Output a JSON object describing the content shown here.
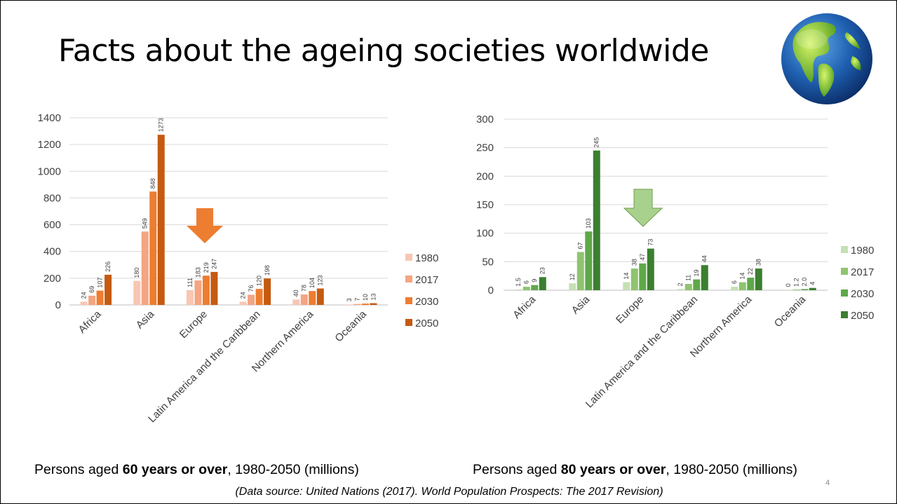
{
  "slide": {
    "title": "Facts about the ageing societies worldwide",
    "source": "(Data source: United Nations (2017). World Population Prospects: The 2017 Revision)",
    "page_number": "4",
    "left_caption": {
      "pre": "Persons aged ",
      "bold": "60 years or over",
      "post": ", 1980-2050 (millions)"
    },
    "right_caption": {
      "pre": "Persons aged ",
      "bold": "80 years or over",
      "post": ", 1980-2050 (millions)"
    }
  },
  "colors": {
    "left": [
      "#F8C6B3",
      "#F4A582",
      "#ED7D31",
      "#C55A11"
    ],
    "right": [
      "#C5E0B4",
      "#8FC46F",
      "#5FA84A",
      "#3B7F30"
    ],
    "left_arrow": "#ED7D31",
    "right_arrow": "#A9D18E"
  },
  "chart_data": [
    {
      "type": "bar",
      "categories": [
        "Africa",
        "Asia",
        "Europe",
        "Latin America and the Caribbean",
        "Northern America",
        "Oceania"
      ],
      "series": [
        {
          "name": "1980",
          "values": [
            24,
            180,
            111,
            24,
            40,
            3
          ],
          "labels": [
            "24",
            "180",
            "111",
            "24",
            "40",
            "3"
          ]
        },
        {
          "name": "2017",
          "values": [
            69,
            549,
            183,
            76,
            78,
            7
          ],
          "labels": [
            "69",
            "549",
            "183",
            "76",
            "78",
            "7"
          ]
        },
        {
          "name": "2030",
          "values": [
            107,
            848,
            219,
            120,
            104,
            10
          ],
          "labels": [
            "107",
            "848",
            "219",
            "120",
            "104",
            "10"
          ]
        },
        {
          "name": "2050",
          "values": [
            226,
            1273,
            247,
            198,
            123,
            13
          ],
          "labels": [
            "226",
            "1273",
            "247",
            "198",
            "123",
            "13"
          ]
        }
      ],
      "ylim": [
        0,
        1400
      ],
      "yticks": [
        "0",
        "200",
        "400",
        "600",
        "800",
        "1000",
        "1200",
        "1400"
      ],
      "grid": true,
      "legend": "right"
    },
    {
      "type": "bar",
      "categories": [
        "Africa",
        "Asia",
        "Europe",
        "Latin America and the Caribbean",
        "Northern America",
        "Oceania"
      ],
      "series": [
        {
          "name": "1980",
          "values": [
            1.5,
            12,
            14,
            2,
            6,
            0
          ],
          "labels": [
            "1.5",
            "12",
            "14",
            "2",
            "6",
            "0"
          ]
        },
        {
          "name": "2017",
          "values": [
            6,
            67,
            38,
            11,
            14,
            1.2
          ],
          "labels": [
            "6",
            "67",
            "38",
            "11",
            "14",
            "1.2"
          ]
        },
        {
          "name": "2030",
          "values": [
            9,
            103,
            47,
            19,
            22,
            2.0
          ],
          "labels": [
            "9",
            "103",
            "47",
            "19",
            "22",
            "2.0"
          ]
        },
        {
          "name": "2050",
          "values": [
            23,
            245,
            73,
            44,
            38,
            4
          ],
          "labels": [
            "23",
            "245",
            "73",
            "44",
            "38",
            "4"
          ]
        }
      ],
      "ylim": [
        0,
        300
      ],
      "yticks": [
        "0",
        "50",
        "100",
        "150",
        "200",
        "250",
        "300"
      ],
      "grid": true,
      "legend": "right"
    }
  ]
}
